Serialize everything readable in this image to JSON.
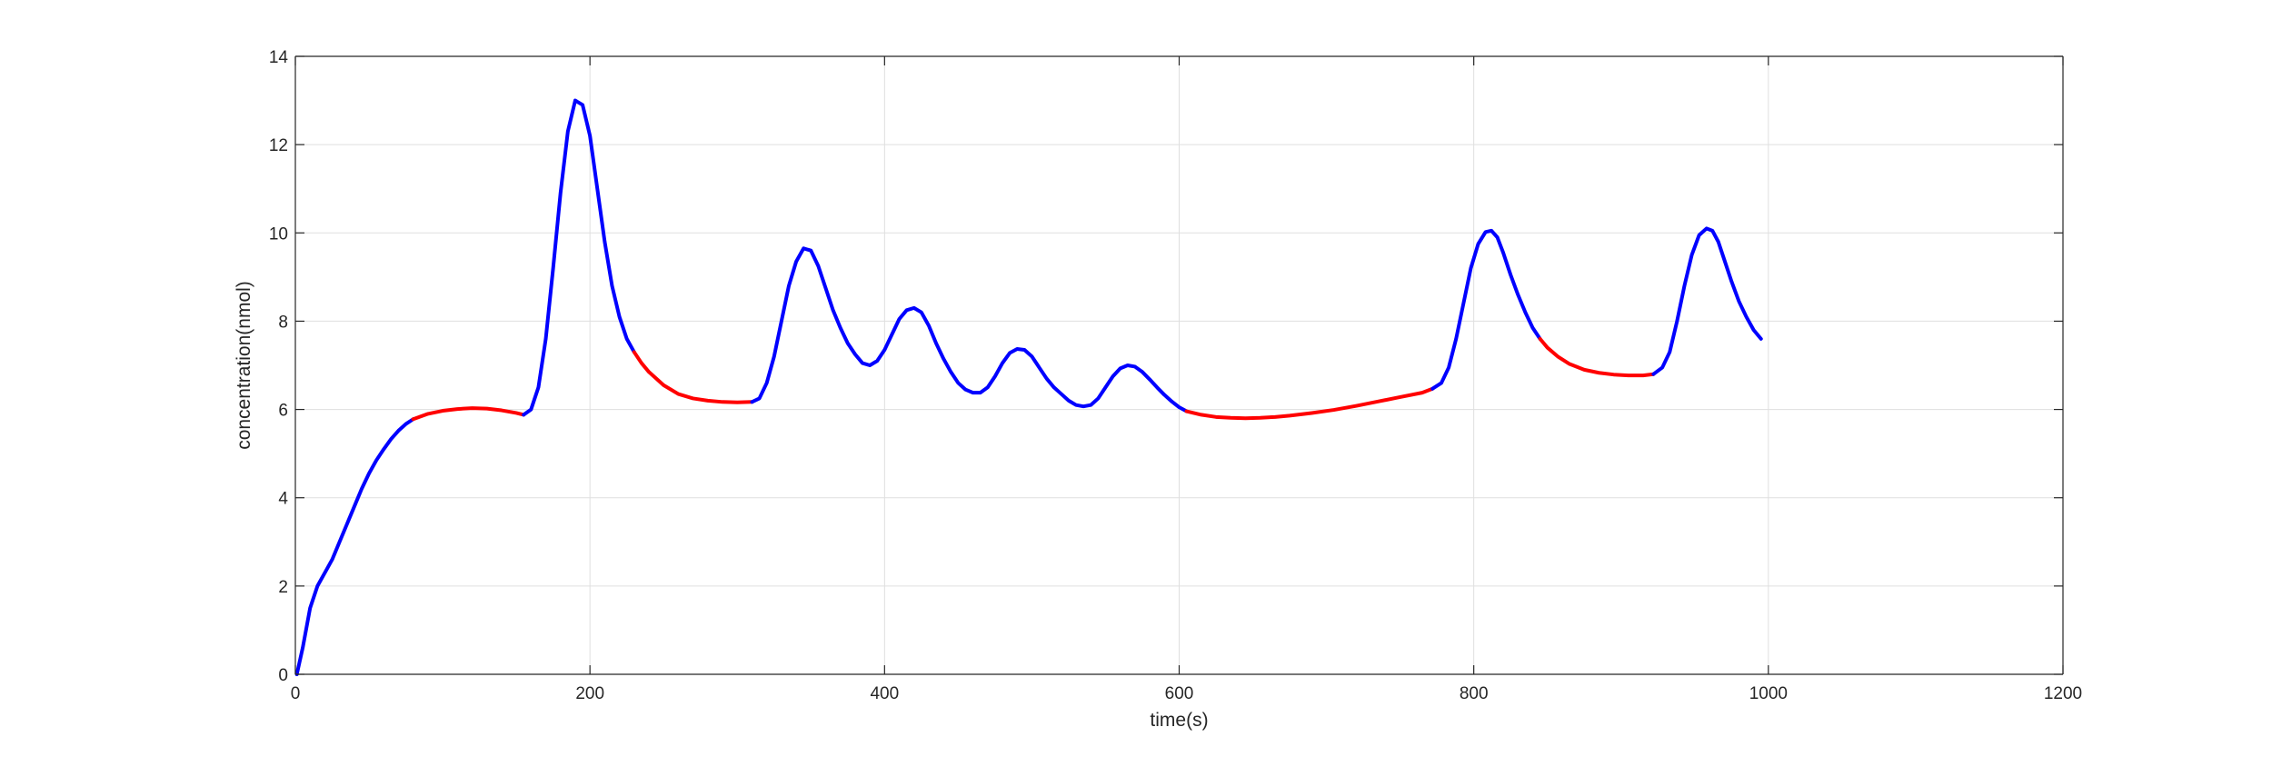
{
  "chart_data": {
    "type": "line",
    "title": "",
    "xlabel": "time(s)",
    "ylabel": "concentration(nmol)",
    "xlim": [
      0,
      1200
    ],
    "ylim": [
      0,
      14
    ],
    "xticks": [
      0,
      200,
      400,
      600,
      800,
      1000,
      1200
    ],
    "yticks": [
      0,
      2,
      4,
      6,
      8,
      10,
      12,
      14
    ],
    "grid": true,
    "box": true,
    "colors": {
      "blue": "#0000ff",
      "red": "#ff0000",
      "axis": "#262626",
      "grid": "#dfdfdf"
    },
    "segments": [
      {
        "color": "blue",
        "points": [
          [
            1,
            0
          ],
          [
            5,
            0.6
          ],
          [
            10,
            1.5
          ],
          [
            15,
            2.0
          ],
          [
            20,
            2.3
          ],
          [
            25,
            2.6
          ],
          [
            30,
            3.0
          ],
          [
            35,
            3.4
          ],
          [
            40,
            3.8
          ],
          [
            45,
            4.2
          ],
          [
            50,
            4.55
          ],
          [
            55,
            4.85
          ],
          [
            60,
            5.1
          ],
          [
            65,
            5.33
          ],
          [
            70,
            5.52
          ],
          [
            75,
            5.67
          ],
          [
            80,
            5.78
          ]
        ]
      },
      {
        "color": "red",
        "points": [
          [
            80,
            5.78
          ],
          [
            90,
            5.9
          ],
          [
            100,
            5.97
          ],
          [
            110,
            6.01
          ],
          [
            120,
            6.03
          ],
          [
            130,
            6.02
          ],
          [
            140,
            5.98
          ],
          [
            150,
            5.92
          ],
          [
            155,
            5.88
          ]
        ]
      },
      {
        "color": "blue",
        "points": [
          [
            155,
            5.88
          ],
          [
            160,
            6.0
          ],
          [
            165,
            6.5
          ],
          [
            170,
            7.6
          ],
          [
            175,
            9.2
          ],
          [
            180,
            10.9
          ],
          [
            185,
            12.3
          ],
          [
            190,
            13.0
          ],
          [
            195,
            12.9
          ],
          [
            200,
            12.2
          ],
          [
            205,
            11.0
          ],
          [
            210,
            9.8
          ],
          [
            215,
            8.8
          ],
          [
            220,
            8.1
          ],
          [
            225,
            7.6
          ],
          [
            230,
            7.3
          ]
        ]
      },
      {
        "color": "red",
        "points": [
          [
            230,
            7.3
          ],
          [
            235,
            7.05
          ],
          [
            240,
            6.85
          ],
          [
            250,
            6.55
          ],
          [
            260,
            6.35
          ],
          [
            270,
            6.25
          ],
          [
            280,
            6.2
          ],
          [
            290,
            6.17
          ],
          [
            300,
            6.16
          ],
          [
            310,
            6.17
          ]
        ]
      },
      {
        "color": "blue",
        "points": [
          [
            310,
            6.17
          ],
          [
            315,
            6.25
          ],
          [
            320,
            6.6
          ],
          [
            325,
            7.2
          ],
          [
            330,
            8.0
          ],
          [
            335,
            8.8
          ],
          [
            340,
            9.35
          ],
          [
            345,
            9.65
          ],
          [
            350,
            9.6
          ],
          [
            355,
            9.25
          ],
          [
            360,
            8.75
          ],
          [
            365,
            8.25
          ],
          [
            370,
            7.85
          ],
          [
            375,
            7.5
          ],
          [
            380,
            7.25
          ],
          [
            385,
            7.05
          ],
          [
            390,
            7.0
          ],
          [
            395,
            7.1
          ],
          [
            400,
            7.35
          ],
          [
            405,
            7.7
          ],
          [
            410,
            8.05
          ],
          [
            415,
            8.25
          ],
          [
            420,
            8.3
          ],
          [
            425,
            8.2
          ],
          [
            430,
            7.9
          ],
          [
            435,
            7.5
          ],
          [
            440,
            7.15
          ],
          [
            445,
            6.85
          ],
          [
            450,
            6.6
          ],
          [
            455,
            6.45
          ],
          [
            460,
            6.38
          ],
          [
            465,
            6.38
          ],
          [
            470,
            6.5
          ],
          [
            475,
            6.75
          ],
          [
            480,
            7.05
          ],
          [
            485,
            7.28
          ],
          [
            490,
            7.37
          ],
          [
            495,
            7.35
          ],
          [
            500,
            7.2
          ],
          [
            505,
            6.95
          ],
          [
            510,
            6.7
          ],
          [
            515,
            6.5
          ],
          [
            520,
            6.35
          ],
          [
            525,
            6.2
          ],
          [
            530,
            6.1
          ],
          [
            535,
            6.07
          ],
          [
            540,
            6.1
          ],
          [
            545,
            6.25
          ],
          [
            550,
            6.5
          ],
          [
            555,
            6.75
          ],
          [
            560,
            6.93
          ],
          [
            565,
            7.0
          ],
          [
            570,
            6.97
          ],
          [
            575,
            6.85
          ],
          [
            580,
            6.68
          ],
          [
            585,
            6.5
          ],
          [
            590,
            6.33
          ],
          [
            595,
            6.18
          ],
          [
            600,
            6.05
          ],
          [
            605,
            5.96
          ]
        ]
      },
      {
        "color": "red",
        "points": [
          [
            605,
            5.96
          ],
          [
            615,
            5.88
          ],
          [
            625,
            5.83
          ],
          [
            635,
            5.81
          ],
          [
            645,
            5.8
          ],
          [
            655,
            5.81
          ],
          [
            665,
            5.83
          ],
          [
            675,
            5.86
          ],
          [
            690,
            5.92
          ],
          [
            705,
            5.99
          ],
          [
            720,
            6.08
          ],
          [
            735,
            6.18
          ],
          [
            750,
            6.28
          ],
          [
            765,
            6.38
          ],
          [
            772,
            6.47
          ]
        ]
      },
      {
        "color": "blue",
        "points": [
          [
            772,
            6.47
          ],
          [
            778,
            6.6
          ],
          [
            783,
            6.95
          ],
          [
            788,
            7.6
          ],
          [
            793,
            8.4
          ],
          [
            798,
            9.2
          ],
          [
            803,
            9.75
          ],
          [
            808,
            10.02
          ],
          [
            812,
            10.05
          ],
          [
            816,
            9.9
          ],
          [
            820,
            9.55
          ],
          [
            825,
            9.05
          ],
          [
            830,
            8.6
          ],
          [
            835,
            8.2
          ],
          [
            840,
            7.85
          ],
          [
            845,
            7.6
          ]
        ]
      },
      {
        "color": "red",
        "points": [
          [
            845,
            7.6
          ],
          [
            850,
            7.4
          ],
          [
            857,
            7.2
          ],
          [
            865,
            7.03
          ],
          [
            875,
            6.9
          ],
          [
            885,
            6.83
          ],
          [
            895,
            6.79
          ],
          [
            905,
            6.77
          ],
          [
            915,
            6.77
          ],
          [
            922,
            6.8
          ]
        ]
      },
      {
        "color": "blue",
        "points": [
          [
            922,
            6.8
          ],
          [
            928,
            6.95
          ],
          [
            933,
            7.3
          ],
          [
            938,
            8.0
          ],
          [
            943,
            8.8
          ],
          [
            948,
            9.5
          ],
          [
            953,
            9.95
          ],
          [
            958,
            10.1
          ],
          [
            962,
            10.05
          ],
          [
            966,
            9.8
          ],
          [
            970,
            9.4
          ],
          [
            975,
            8.9
          ],
          [
            980,
            8.45
          ],
          [
            985,
            8.1
          ],
          [
            990,
            7.8
          ],
          [
            995,
            7.6
          ]
        ]
      }
    ]
  }
}
